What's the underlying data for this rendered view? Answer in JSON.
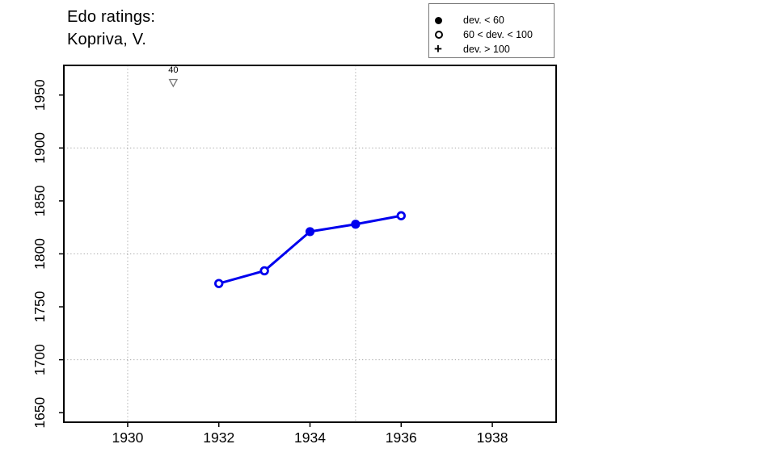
{
  "title": {
    "line1": "Edo ratings:",
    "line2": "Kopriva, V."
  },
  "legend": {
    "items": [
      {
        "symbol": "filled-circle",
        "label": "dev. < 60"
      },
      {
        "symbol": "open-circle",
        "label": "60 < dev. < 100"
      },
      {
        "symbol": "plus",
        "label": "dev. > 100"
      }
    ]
  },
  "chart_data": {
    "type": "line",
    "title": "Edo ratings: Kopriva, V.",
    "xlabel": "",
    "ylabel": "",
    "xlim": [
      1928.6,
      1939.4
    ],
    "ylim": [
      1641,
      1978
    ],
    "x_ticks": [
      1930,
      1932,
      1934,
      1936,
      1938
    ],
    "y_ticks": [
      1650,
      1700,
      1750,
      1800,
      1850,
      1900,
      1950
    ],
    "x_gridlines": [
      1930,
      1935
    ],
    "y_gridlines": [
      1700,
      1800,
      1900
    ],
    "grid": true,
    "legend_position": "top-right",
    "series": [
      {
        "name": "Edo rating",
        "color": "#0000EE",
        "points": [
          {
            "year": 1932,
            "rating": 1772,
            "marker": "open-circle"
          },
          {
            "year": 1933,
            "rating": 1784,
            "marker": "open-circle"
          },
          {
            "year": 1934,
            "rating": 1821,
            "marker": "filled-circle"
          },
          {
            "year": 1935,
            "rating": 1828,
            "marker": "filled-circle"
          },
          {
            "year": 1936,
            "rating": 1836,
            "marker": "open-circle"
          }
        ]
      }
    ],
    "annotations": [
      {
        "year": 1931,
        "label": "40",
        "marker": "open-triangle-down"
      }
    ]
  },
  "colors": {
    "line": "#0000EE",
    "grid": "#A8A8A8",
    "axis": "#000000",
    "triangle": "#787878",
    "background": "#FFFFFF"
  }
}
